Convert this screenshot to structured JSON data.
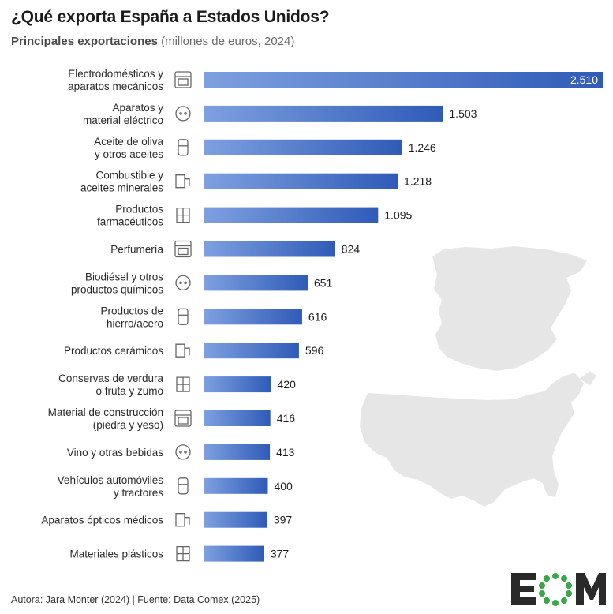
{
  "title": "¿Qué exporta España a Estados Unidos?",
  "subtitle": "Principales exportaciones",
  "subtitle_unit": "(millones de euros, 2024)",
  "footer": "Autora: Jara Monter (2024) | Fuente: Data Comex (2025)",
  "logo_text": "EOM",
  "colors": {
    "bar_start": "#7ea0e0",
    "bar_end": "#2f5bb8",
    "map": "#e6e6e6"
  },
  "chart_data": {
    "type": "bar",
    "orientation": "horizontal",
    "title": "¿Qué exporta España a Estados Unidos?",
    "subtitle": "Principales exportaciones (millones de euros, 2024)",
    "categories": [
      "Electrodomésticos y\naparatos mecánicos",
      "Aparatos y\nmaterial eléctrico",
      "Aceite de oliva\ny otros aceites",
      "Combustible y\naceites minerales",
      "Productos\nfarmacéuticos",
      "Perfumería",
      "Biodiésel y otros\nproductos químicos",
      "Productos de\nhierro/acero",
      "Productos cerámicos",
      "Conservas de verdura\no fruta y zumo",
      "Material de construcción\n(piedra y yeso)",
      "Vino y otras bebidas",
      "Vehículos automóviles\ny tractores",
      "Aparatos ópticos médicos",
      "Materiales plásticos"
    ],
    "values": [
      2510,
      1503,
      1246,
      1218,
      1095,
      824,
      651,
      616,
      596,
      420,
      416,
      413,
      400,
      397,
      377
    ],
    "value_labels": [
      "2.510",
      "1.503",
      "1.246",
      "1.218",
      "1.095",
      "824",
      "651",
      "616",
      "596",
      "420",
      "416",
      "413",
      "400",
      "397",
      "377"
    ],
    "icons": [
      "oven-icon",
      "plug-socket-icon",
      "olive-branch-icon",
      "fuel-pump-icon",
      "medicine-jar-icon",
      "perfume-bottle-icon",
      "chemical-barrel-icon",
      "bolt-nut-icon",
      "ceramic-tile-icon",
      "fruit-icon",
      "brick-trowel-icon",
      "wine-bottles-icon",
      "van-icon",
      "medical-scanner-icon",
      "plastic-bag-icon"
    ],
    "xlim": [
      0,
      2510
    ],
    "grid": false
  }
}
